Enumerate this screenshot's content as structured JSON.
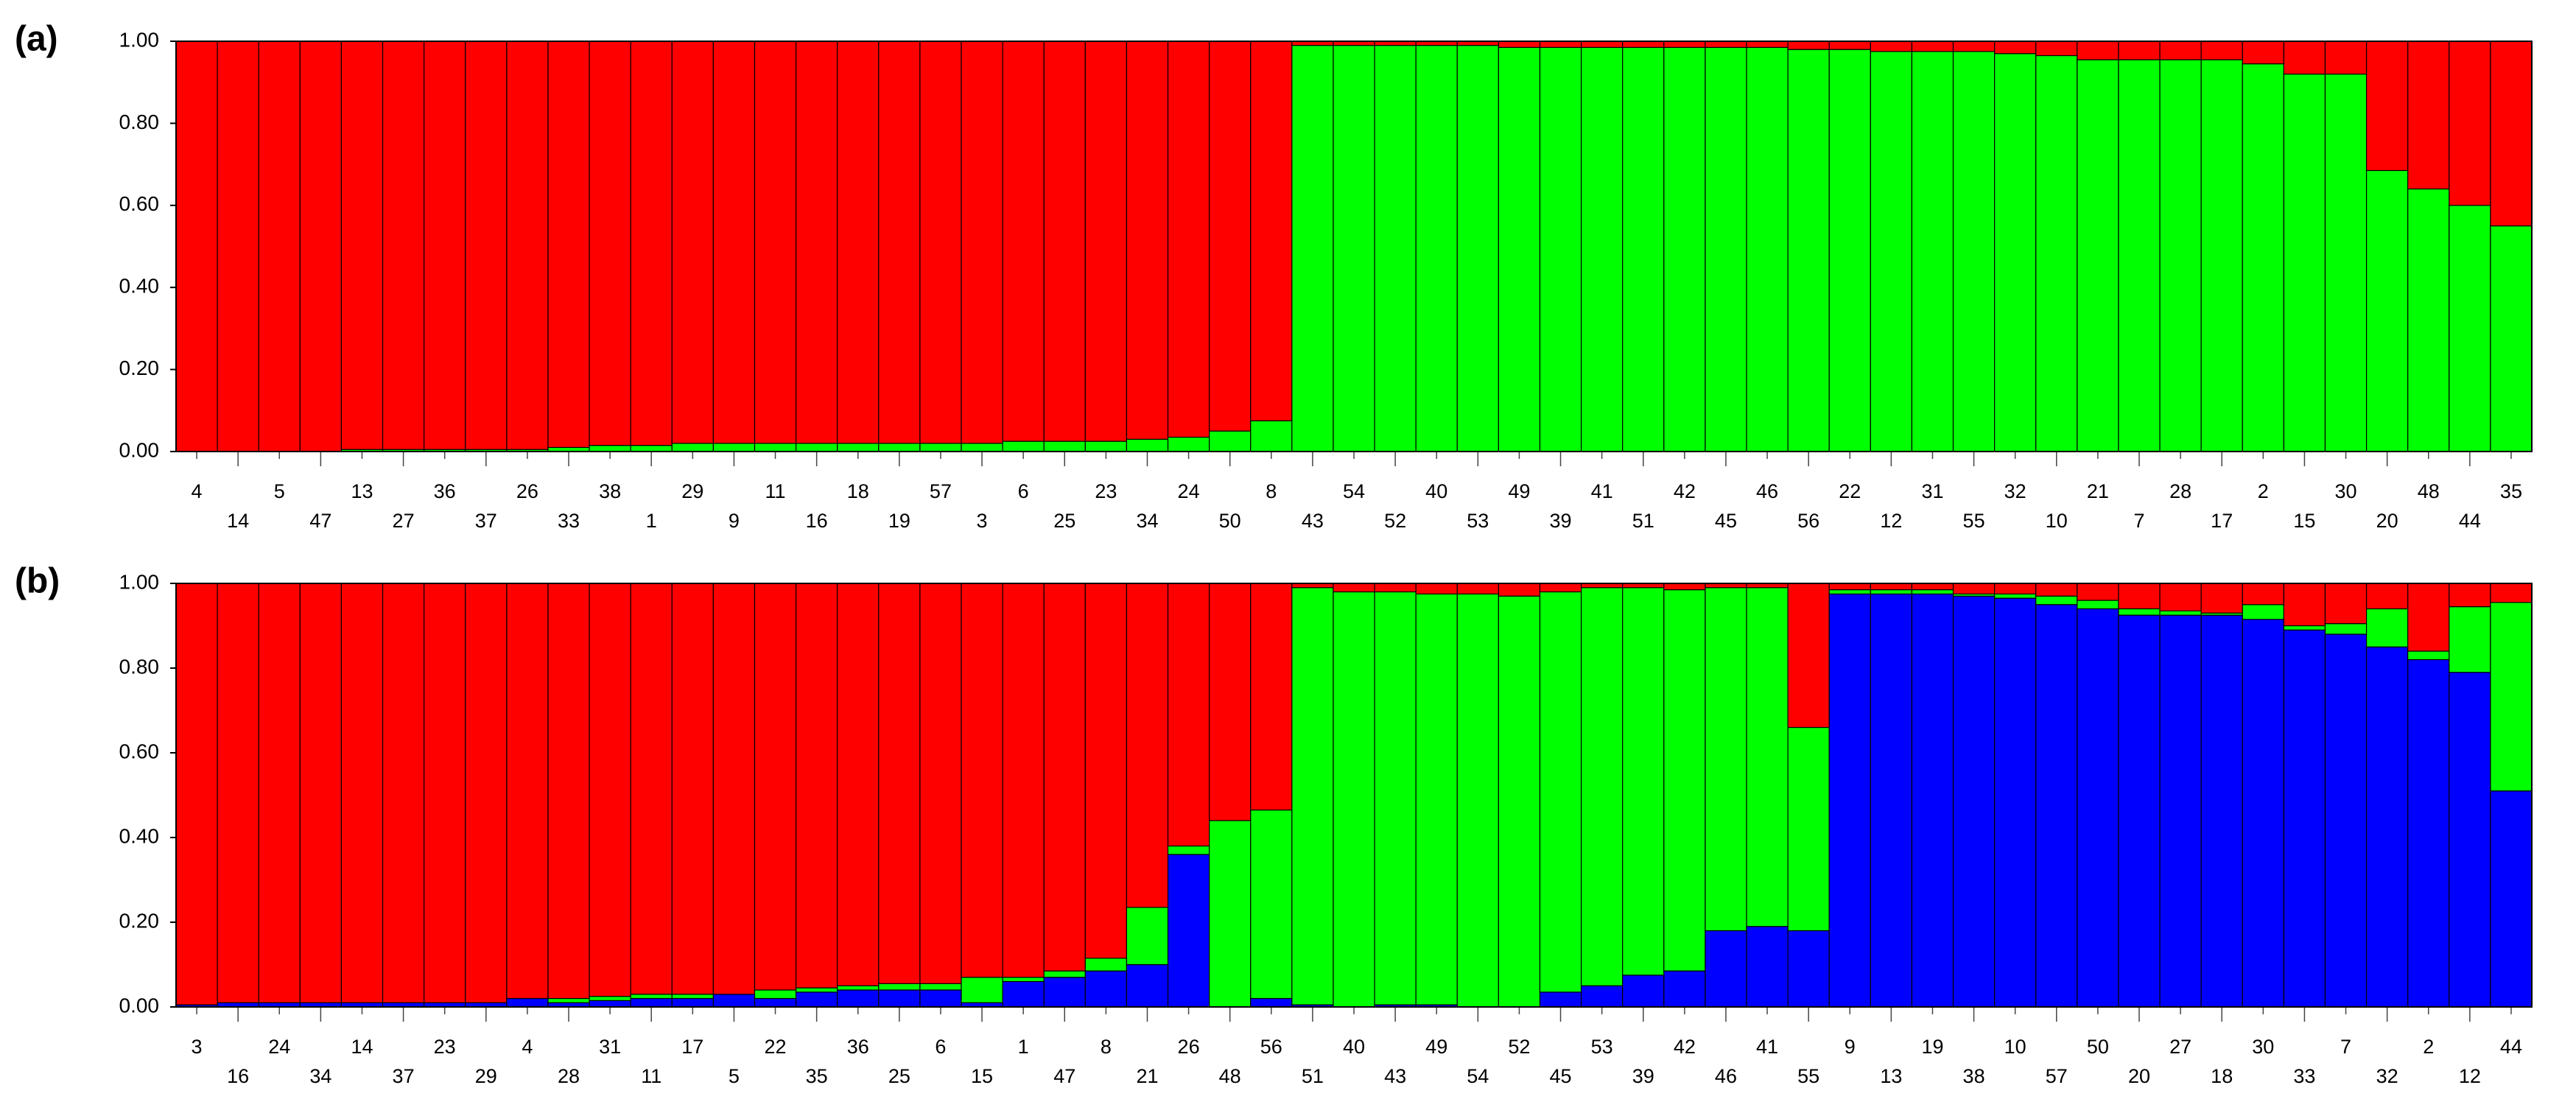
{
  "chart_data": [
    {
      "type": "bar",
      "stacked": true,
      "label": "(a)",
      "categories": [
        "4",
        "14",
        "5",
        "47",
        "13",
        "27",
        "36",
        "37",
        "26",
        "33",
        "38",
        "1",
        "29",
        "9",
        "11",
        "16",
        "18",
        "19",
        "57",
        "3",
        "6",
        "25",
        "23",
        "34",
        "24",
        "50",
        "8",
        "43",
        "54",
        "52",
        "40",
        "53",
        "49",
        "39",
        "41",
        "51",
        "42",
        "45",
        "46",
        "56",
        "22",
        "12",
        "31",
        "55",
        "32",
        "10",
        "21",
        "7",
        "28",
        "17",
        "2",
        "15",
        "30",
        "20",
        "48",
        "44",
        "35"
      ],
      "series": [
        {
          "color": "#00ff00",
          "values": [
            0,
            0,
            0,
            0,
            0.005,
            0.005,
            0.005,
            0.005,
            0.005,
            0.01,
            0.015,
            0.015,
            0.02,
            0.02,
            0.02,
            0.02,
            0.02,
            0.02,
            0.02,
            0.02,
            0.025,
            0.025,
            0.025,
            0.03,
            0.035,
            0.05,
            0.075,
            0.99,
            0.99,
            0.99,
            0.99,
            0.99,
            0.985,
            0.985,
            0.985,
            0.985,
            0.985,
            0.985,
            0.985,
            0.98,
            0.98,
            0.975,
            0.975,
            0.975,
            0.97,
            0.965,
            0.955,
            0.955,
            0.955,
            0.955,
            0.945,
            0.92,
            0.92,
            0.685,
            0.64,
            0.6,
            0.55
          ]
        },
        {
          "color": "#ff0000",
          "values": [
            1,
            1,
            1,
            1,
            0.995,
            0.995,
            0.995,
            0.995,
            0.995,
            0.99,
            0.985,
            0.985,
            0.98,
            0.98,
            0.98,
            0.98,
            0.98,
            0.98,
            0.98,
            0.98,
            0.975,
            0.975,
            0.975,
            0.97,
            0.965,
            0.95,
            0.925,
            0.01,
            0.01,
            0.01,
            0.01,
            0.01,
            0.015,
            0.015,
            0.015,
            0.015,
            0.015,
            0.015,
            0.015,
            0.02,
            0.02,
            0.025,
            0.025,
            0.025,
            0.03,
            0.035,
            0.045,
            0.045,
            0.045,
            0.045,
            0.055,
            0.08,
            0.08,
            0.315,
            0.36,
            0.4,
            0.45
          ]
        }
      ],
      "ylim": [
        0,
        1
      ],
      "yticks": [
        {
          "value": 0,
          "label": "0.00"
        },
        {
          "value": 0.2,
          "label": "0.20"
        },
        {
          "value": 0.4,
          "label": "0.40"
        },
        {
          "value": 0.6,
          "label": "0.60"
        },
        {
          "value": 0.8,
          "label": "0.80"
        },
        {
          "value": 1,
          "label": "1.00"
        }
      ]
    },
    {
      "type": "bar",
      "stacked": true,
      "label": "(b)",
      "categories": [
        "3",
        "16",
        "24",
        "34",
        "14",
        "37",
        "23",
        "29",
        "4",
        "28",
        "31",
        "11",
        "17",
        "5",
        "22",
        "35",
        "36",
        "25",
        "6",
        "15",
        "1",
        "47",
        "8",
        "21",
        "26",
        "48",
        "56",
        "51",
        "40",
        "43",
        "49",
        "54",
        "52",
        "45",
        "53",
        "39",
        "42",
        "46",
        "41",
        "55",
        "9",
        "13",
        "19",
        "38",
        "10",
        "57",
        "50",
        "20",
        "27",
        "18",
        "30",
        "33",
        "7",
        "32",
        "2",
        "12",
        "44"
      ],
      "series": [
        {
          "color": "#0000ff",
          "values": [
            0.005,
            0.01,
            0.01,
            0.01,
            0.01,
            0.01,
            0.01,
            0.01,
            0.02,
            0.01,
            0.015,
            0.02,
            0.02,
            0.03,
            0.02,
            0.035,
            0.04,
            0.04,
            0.04,
            0.01,
            0.06,
            0.07,
            0.085,
            0.1,
            0.36,
            0,
            0.02,
            0.005,
            0,
            0.005,
            0.005,
            0,
            0,
            0.035,
            0.05,
            0.075,
            0.085,
            0.18,
            0.19,
            0.18,
            0.975,
            0.975,
            0.975,
            0.97,
            0.965,
            0.95,
            0.94,
            0.925,
            0.925,
            0.925,
            0.915,
            0.89,
            0.88,
            0.85,
            0.82,
            0.79,
            0.51
          ]
        },
        {
          "color": "#00ff00",
          "values": [
            0,
            0,
            0,
            0,
            0,
            0,
            0,
            0,
            0,
            0.01,
            0.01,
            0.01,
            0.01,
            0,
            0.02,
            0.01,
            0.01,
            0.015,
            0.015,
            0.06,
            0.01,
            0.015,
            0.03,
            0.135,
            0.02,
            0.44,
            0.445,
            0.985,
            0.98,
            0.975,
            0.97,
            0.975,
            0.97,
            0.945,
            0.94,
            0.915,
            0.9,
            0.81,
            0.8,
            0.48,
            0.01,
            0.01,
            0.01,
            0.005,
            0.01,
            0.02,
            0.02,
            0.015,
            0.01,
            0.005,
            0.035,
            0.01,
            0.025,
            0.09,
            0.02,
            0.155,
            0.445
          ]
        },
        {
          "color": "#ff0000",
          "values": [
            0.995,
            0.99,
            0.99,
            0.99,
            0.99,
            0.99,
            0.99,
            0.99,
            0.98,
            0.98,
            0.975,
            0.97,
            0.97,
            0.97,
            0.96,
            0.955,
            0.95,
            0.945,
            0.945,
            0.93,
            0.93,
            0.915,
            0.885,
            0.765,
            0.62,
            0.56,
            0.535,
            0.01,
            0.02,
            0.02,
            0.025,
            0.025,
            0.03,
            0.02,
            0.01,
            0.01,
            0.015,
            0.01,
            0.01,
            0.34,
            0.015,
            0.015,
            0.015,
            0.025,
            0.025,
            0.03,
            0.04,
            0.06,
            0.065,
            0.07,
            0.05,
            0.1,
            0.095,
            0.06,
            0.16,
            0.055,
            0.045
          ]
        }
      ],
      "ylim": [
        0,
        1
      ],
      "yticks": [
        {
          "value": 0,
          "label": "0.00"
        },
        {
          "value": 0.2,
          "label": "0.20"
        },
        {
          "value": 0.4,
          "label": "0.40"
        },
        {
          "value": 0.6,
          "label": "0.60"
        },
        {
          "value": 0.8,
          "label": "0.80"
        },
        {
          "value": 1,
          "label": "1.00"
        }
      ]
    }
  ]
}
